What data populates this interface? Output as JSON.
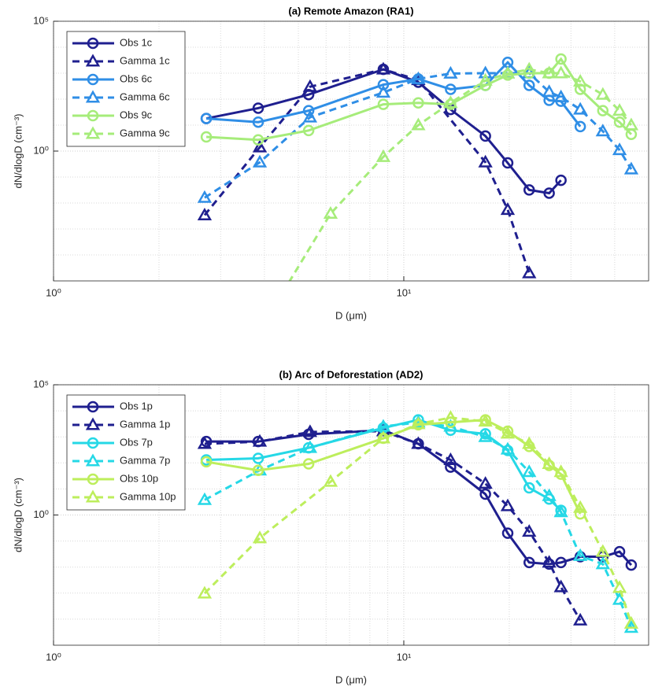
{
  "chart_data": [
    {
      "type": "line",
      "title": "(a) Remote Amazon (RA1)",
      "x_label": "D (μm)",
      "y_label": "dN/dlogD (cm⁻³)",
      "xscale": "log",
      "yscale": "log",
      "xlim": [
        1,
        50
      ],
      "ylim": [
        1e-05,
        100000
      ],
      "xticks": [
        {
          "value": 1,
          "label": "10⁰"
        },
        {
          "value": 10,
          "label": "10¹"
        }
      ],
      "yticks": [
        {
          "value": 1,
          "label": "10⁰"
        },
        {
          "value": 100000,
          "label": "10⁵"
        }
      ],
      "xminorticks": [
        2,
        3,
        4,
        5,
        6,
        7,
        8,
        9,
        20,
        30,
        40
      ],
      "yminorticks": [
        0.0001,
        0.001,
        0.01,
        0.1,
        10,
        100,
        1000,
        10000
      ],
      "grid": true,
      "legend": "upper left",
      "series": [
        {
          "name": "Obs 1c",
          "color": "#1f1f8f",
          "marker": "circle",
          "linestyle": "solid",
          "x": [
            2.73,
            3.84,
            5.35,
            8.74,
            11.0,
            13.6,
            17.1,
            19.8,
            22.8,
            26.0,
            28.1
          ],
          "values": [
            18,
            45,
            150,
            1400,
            450,
            40,
            3.8,
            0.35,
            0.032,
            0.024,
            0.075
          ]
        },
        {
          "name": "Gamma 1c",
          "color": "#1f1f8f",
          "marker": "triangle",
          "linestyle": "dashed",
          "x": [
            2.7,
            3.88,
            5.4,
            8.74,
            11.0,
            17.1,
            19.8,
            22.8
          ],
          "values": [
            0.0034,
            1.4,
            300,
            1400,
            550,
            0.37,
            0.0055,
            2e-05
          ]
        },
        {
          "name": "Obs 6c",
          "color": "#2f8ee6",
          "marker": "circle",
          "linestyle": "solid",
          "x": [
            2.73,
            3.84,
            5.35,
            8.74,
            11.0,
            13.6,
            17.1,
            19.8,
            22.8,
            26.0,
            28.1,
            31.9
          ],
          "values": [
            18,
            13,
            36,
            360,
            600,
            240,
            340,
            2600,
            340,
            90,
            83,
            8.8
          ]
        },
        {
          "name": "Gamma 6c",
          "color": "#2f8ee6",
          "marker": "triangle",
          "linestyle": "dashed",
          "x": [
            2.7,
            3.88,
            5.4,
            8.74,
            11.0,
            13.6,
            17.1,
            19.8,
            22.8,
            26.0,
            28.1,
            31.9,
            37.0,
            41.3,
            44.6
          ],
          "values": [
            0.016,
            0.37,
            20,
            180,
            600,
            970,
            1000,
            1000,
            1000,
            190,
            120,
            40,
            5.8,
            1.1,
            0.2
          ]
        },
        {
          "name": "Obs 9c",
          "color": "#a6ec7a",
          "marker": "circle",
          "linestyle": "solid",
          "x": [
            2.73,
            3.84,
            5.35,
            8.74,
            11.0,
            13.6,
            17.1,
            19.8,
            22.8,
            26.0,
            28.1,
            31.9,
            37.0,
            41.3,
            44.6
          ],
          "values": [
            3.5,
            2.7,
            6.2,
            63,
            72,
            63,
            340,
            850,
            1000,
            1000,
            3500,
            240,
            36,
            13,
            4.4
          ]
        },
        {
          "name": "Gamma 9c",
          "color": "#a6ec7a",
          "marker": "triangle",
          "linestyle": "dashed",
          "x": [
            3.84,
            6.18,
            8.74,
            11.0,
            13.6,
            17.1,
            19.8,
            22.8,
            26.0,
            28.1,
            31.9,
            37.0,
            41.3,
            44.6
          ],
          "values": [
            1e-07,
            0.0039,
            0.6,
            10,
            72,
            520,
            970,
            1400,
            1000,
            1000,
            480,
            150,
            36,
            10
          ]
        }
      ]
    },
    {
      "type": "line",
      "title": "(b) Arc of Deforestation (AD2)",
      "x_label": "D (μm)",
      "y_label": "dN/dlogD (cm⁻³)",
      "xscale": "log",
      "yscale": "log",
      "xlim": [
        1,
        50
      ],
      "ylim": [
        1e-05,
        100000
      ],
      "xticks": [
        {
          "value": 1,
          "label": "10⁰"
        },
        {
          "value": 10,
          "label": "10¹"
        }
      ],
      "yticks": [
        {
          "value": 1,
          "label": "10⁰"
        },
        {
          "value": 100000,
          "label": "10⁵"
        }
      ],
      "xminorticks": [
        2,
        3,
        4,
        5,
        6,
        7,
        8,
        9,
        20,
        30,
        40
      ],
      "yminorticks": [
        0.0001,
        0.001,
        0.01,
        0.1,
        10,
        100,
        1000,
        10000
      ],
      "grid": true,
      "legend": "upper left",
      "series": [
        {
          "name": "Obs 1p",
          "color": "#1f1f8f",
          "marker": "circle",
          "linestyle": "solid",
          "x": [
            2.73,
            3.84,
            5.35,
            8.74,
            11.0,
            13.6,
            17.1,
            19.8,
            22.8,
            26.0,
            28.1,
            31.9,
            37.0,
            41.3,
            44.6
          ],
          "values": [
            660,
            660,
            1250,
            1800,
            540,
            69,
            6.3,
            0.2,
            0.015,
            0.013,
            0.015,
            0.025,
            0.025,
            0.039,
            0.012
          ]
        },
        {
          "name": "Gamma 1p",
          "color": "#1f1f8f",
          "marker": "triangle",
          "linestyle": "dashed",
          "x": [
            2.7,
            3.88,
            5.4,
            8.74,
            11.0,
            13.6,
            17.1,
            19.8,
            22.8,
            26.0,
            28.1,
            31.9
          ],
          "values": [
            540,
            660,
            1550,
            1650,
            540,
            130,
            16,
            2.2,
            0.23,
            0.015,
            0.0017,
            9e-05
          ]
        },
        {
          "name": "Obs 7p",
          "color": "#25d8e6",
          "marker": "circle",
          "linestyle": "solid",
          "x": [
            2.73,
            3.84,
            5.35,
            8.74,
            11.0,
            13.6,
            17.1,
            19.8,
            22.8,
            26.0,
            28.1
          ],
          "values": [
            130,
            150,
            380,
            2200,
            4500,
            1800,
            1300,
            300,
            11,
            4.1,
            1.5
          ]
        },
        {
          "name": "Gamma 7p",
          "color": "#25d8e6",
          "marker": "triangle",
          "linestyle": "dashed",
          "x": [
            2.7,
            3.88,
            5.4,
            8.74,
            11.0,
            13.6,
            17.1,
            19.8,
            22.8,
            26.0,
            28.1,
            31.9,
            37.0,
            41.3,
            44.6
          ],
          "values": [
            3.8,
            52,
            380,
            2500,
            3600,
            2500,
            1000,
            330,
            45,
            5.4,
            1.3,
            0.027,
            0.013,
            0.00056,
            4.7e-05
          ]
        },
        {
          "name": "Obs 10p",
          "color": "#bdee5c",
          "marker": "circle",
          "linestyle": "solid",
          "x": [
            2.73,
            3.84,
            5.35,
            8.74,
            11.0,
            13.6,
            17.1,
            19.8,
            22.8,
            26.0,
            28.1,
            31.9
          ],
          "values": [
            110,
            52,
            92,
            880,
            2900,
            3600,
            4500,
            1650,
            430,
            80,
            37,
            1.1
          ]
        },
        {
          "name": "Gamma 10p",
          "color": "#bdee5c",
          "marker": "triangle",
          "linestyle": "dashed",
          "x": [
            2.7,
            3.88,
            6.18,
            8.74,
            11.0,
            13.6,
            17.1,
            19.8,
            22.8,
            26.0,
            28.1,
            31.9,
            37.0,
            41.3,
            44.6
          ],
          "values": [
            0.00098,
            0.13,
            19,
            880,
            3100,
            5500,
            3900,
            1350,
            540,
            92,
            45,
            1.9,
            0.039,
            0.0016,
            6.8e-05
          ]
        }
      ]
    }
  ]
}
